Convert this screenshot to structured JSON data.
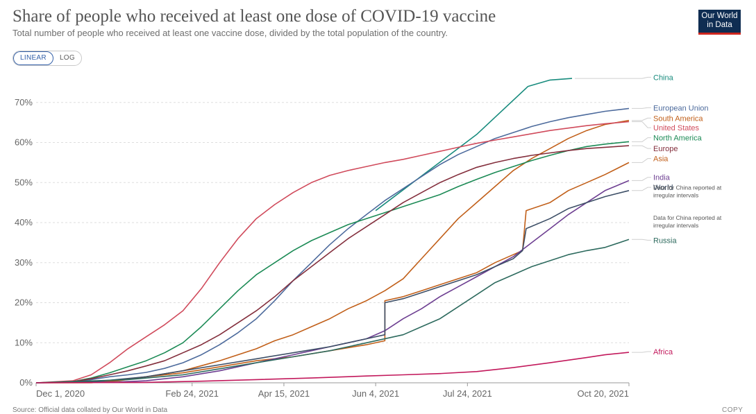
{
  "header": {
    "title": "Share of people who received at least one dose of COVID-19 vaccine",
    "subtitle": "Total number of people who received at least one vaccine dose, divided by the total population of the country.",
    "logo_line1": "Our World",
    "logo_line2": "in Data"
  },
  "controls": {
    "linear_label": "LINEAR",
    "log_label": "LOG"
  },
  "footer": {
    "source": "Source: Official data collated by Our World in Data",
    "copy_label": "COPY"
  },
  "chart_data": {
    "type": "line",
    "x_ticks": [
      "Dec 1, 2020",
      "Feb 24, 2021",
      "Apr 15, 2021",
      "Jun 4, 2021",
      "Jul 24, 2021",
      "Oct 20, 2021"
    ],
    "x_tick_days": [
      0,
      85,
      135,
      185,
      235,
      323
    ],
    "y_ticks": [
      "0%",
      "10%",
      "20%",
      "30%",
      "40%",
      "50%",
      "60%",
      "70%"
    ],
    "ylim": [
      0,
      80
    ],
    "grid": true,
    "legend_placement": "right",
    "notes": [
      "Data for China reported at irregular intervals",
      "Data for China reported at irregular intervals"
    ],
    "series": [
      {
        "name": "China",
        "color": "#178b7d",
        "label_y": 76.3,
        "points": [
          [
            185,
            43
          ],
          [
            240,
            62
          ],
          [
            268,
            74
          ],
          [
            280,
            75.6
          ],
          [
            292,
            76
          ]
        ]
      },
      {
        "name": "European Union",
        "color": "#4c6a9c",
        "label_y": 68.7,
        "points": [
          [
            0,
            0
          ],
          [
            10,
            0.1
          ],
          [
            20,
            0.2
          ],
          [
            30,
            0.8
          ],
          [
            40,
            1.5
          ],
          [
            50,
            2
          ],
          [
            60,
            2.6
          ],
          [
            70,
            3.6
          ],
          [
            80,
            5
          ],
          [
            90,
            7
          ],
          [
            100,
            9.5
          ],
          [
            110,
            12.5
          ],
          [
            120,
            16
          ],
          [
            130,
            20.5
          ],
          [
            140,
            25.5
          ],
          [
            150,
            30
          ],
          [
            160,
            34.5
          ],
          [
            170,
            38.5
          ],
          [
            180,
            42
          ],
          [
            190,
            45.5
          ],
          [
            200,
            48.5
          ],
          [
            210,
            51.5
          ],
          [
            220,
            54.5
          ],
          [
            230,
            57
          ],
          [
            240,
            59
          ],
          [
            250,
            61
          ],
          [
            260,
            62.5
          ],
          [
            270,
            64
          ],
          [
            280,
            65.2
          ],
          [
            290,
            66.2
          ],
          [
            300,
            67
          ],
          [
            310,
            67.8
          ],
          [
            323,
            68.5
          ]
        ]
      },
      {
        "name": "South America",
        "color": "#c15f19",
        "label_y": 66.1,
        "points": [
          [
            0,
            0
          ],
          [
            30,
            0
          ],
          [
            45,
            0.5
          ],
          [
            60,
            1.5
          ],
          [
            80,
            3
          ],
          [
            100,
            5.5
          ],
          [
            120,
            8.5
          ],
          [
            130,
            10.5
          ],
          [
            140,
            12
          ],
          [
            150,
            14
          ],
          [
            160,
            16
          ],
          [
            170,
            18.5
          ],
          [
            180,
            20.5
          ],
          [
            190,
            23
          ],
          [
            200,
            26
          ],
          [
            210,
            31
          ],
          [
            220,
            36
          ],
          [
            230,
            41
          ],
          [
            240,
            45
          ],
          [
            250,
            49
          ],
          [
            260,
            53
          ],
          [
            270,
            56
          ],
          [
            280,
            58.5
          ],
          [
            290,
            61
          ],
          [
            300,
            63
          ],
          [
            310,
            64.5
          ],
          [
            323,
            65.5
          ]
        ]
      },
      {
        "name": "United States",
        "color": "#d04a5b",
        "label_y": 63.7,
        "points": [
          [
            0,
            0
          ],
          [
            20,
            0.5
          ],
          [
            30,
            2
          ],
          [
            40,
            5
          ],
          [
            50,
            8.5
          ],
          [
            60,
            11.5
          ],
          [
            70,
            14.5
          ],
          [
            80,
            18
          ],
          [
            90,
            23.5
          ],
          [
            100,
            30
          ],
          [
            110,
            36
          ],
          [
            120,
            41
          ],
          [
            130,
            44.5
          ],
          [
            140,
            47.5
          ],
          [
            150,
            50
          ],
          [
            160,
            51.8
          ],
          [
            170,
            53
          ],
          [
            180,
            54
          ],
          [
            190,
            55
          ],
          [
            200,
            55.8
          ],
          [
            210,
            56.8
          ],
          [
            220,
            57.8
          ],
          [
            230,
            58.8
          ],
          [
            240,
            59.8
          ],
          [
            250,
            60.6
          ],
          [
            260,
            61.4
          ],
          [
            270,
            62.2
          ],
          [
            280,
            63
          ],
          [
            290,
            63.6
          ],
          [
            300,
            64.2
          ],
          [
            310,
            64.7
          ],
          [
            323,
            65.2
          ]
        ]
      },
      {
        "name": "North America",
        "color": "#1b8a55",
        "label_y": 61.2,
        "points": [
          [
            0,
            0
          ],
          [
            20,
            0.3
          ],
          [
            30,
            1.2
          ],
          [
            40,
            2.5
          ],
          [
            50,
            4
          ],
          [
            60,
            5.5
          ],
          [
            70,
            7.5
          ],
          [
            80,
            10
          ],
          [
            90,
            14
          ],
          [
            100,
            18.5
          ],
          [
            110,
            23
          ],
          [
            120,
            27
          ],
          [
            130,
            30
          ],
          [
            140,
            33
          ],
          [
            150,
            35.5
          ],
          [
            160,
            37.5
          ],
          [
            170,
            39.5
          ],
          [
            180,
            41
          ],
          [
            190,
            42.5
          ],
          [
            200,
            44
          ],
          [
            210,
            45.5
          ],
          [
            220,
            47
          ],
          [
            230,
            49
          ],
          [
            240,
            50.8
          ],
          [
            250,
            52.5
          ],
          [
            260,
            54
          ],
          [
            270,
            55.5
          ],
          [
            280,
            56.8
          ],
          [
            290,
            58
          ],
          [
            300,
            59
          ],
          [
            310,
            59.6
          ],
          [
            323,
            60.2
          ]
        ]
      },
      {
        "name": "Europe",
        "color": "#832e3c",
        "label_y": 58.5,
        "points": [
          [
            0,
            0
          ],
          [
            10,
            0.1
          ],
          [
            20,
            0.3
          ],
          [
            30,
            1
          ],
          [
            40,
            2
          ],
          [
            50,
            3
          ],
          [
            60,
            4.2
          ],
          [
            70,
            5.5
          ],
          [
            80,
            7.5
          ],
          [
            90,
            9.5
          ],
          [
            100,
            12
          ],
          [
            110,
            15
          ],
          [
            120,
            18
          ],
          [
            130,
            21.5
          ],
          [
            140,
            25.5
          ],
          [
            150,
            29
          ],
          [
            160,
            32.5
          ],
          [
            170,
            36
          ],
          [
            180,
            39
          ],
          [
            190,
            42
          ],
          [
            200,
            45
          ],
          [
            210,
            47.5
          ],
          [
            220,
            50
          ],
          [
            230,
            52
          ],
          [
            240,
            53.8
          ],
          [
            250,
            55
          ],
          [
            260,
            56
          ],
          [
            270,
            56.8
          ],
          [
            280,
            57.4
          ],
          [
            290,
            58
          ],
          [
            300,
            58.5
          ],
          [
            310,
            58.8
          ],
          [
            323,
            59.2
          ]
        ]
      },
      {
        "name": "Asia",
        "color": "#c15f19",
        "label_y": 56,
        "points": [
          [
            0,
            0
          ],
          [
            40,
            0.5
          ],
          [
            80,
            2.5
          ],
          [
            100,
            4
          ],
          [
            120,
            5.5
          ],
          [
            140,
            6.5
          ],
          [
            160,
            8
          ],
          [
            180,
            9.5
          ],
          [
            190,
            10.5
          ],
          [
            190,
            20.5
          ],
          [
            200,
            21.5
          ],
          [
            210,
            23
          ],
          [
            220,
            24.5
          ],
          [
            230,
            26
          ],
          [
            240,
            27.5
          ],
          [
            250,
            30
          ],
          [
            260,
            32
          ],
          [
            265,
            33
          ],
          [
            267,
            43
          ],
          [
            280,
            45
          ],
          [
            290,
            48
          ],
          [
            300,
            50
          ],
          [
            310,
            52
          ],
          [
            323,
            55
          ]
        ]
      },
      {
        "name": "India",
        "color": "#6d3e91",
        "label_y": 51.3,
        "points": [
          [
            0,
            0
          ],
          [
            45,
            0.2
          ],
          [
            60,
            0.5
          ],
          [
            80,
            1.5
          ],
          [
            100,
            3
          ],
          [
            120,
            5
          ],
          [
            140,
            7
          ],
          [
            160,
            9
          ],
          [
            170,
            10
          ],
          [
            180,
            11
          ],
          [
            190,
            13
          ],
          [
            200,
            16
          ],
          [
            210,
            18.5
          ],
          [
            220,
            21.5
          ],
          [
            230,
            24
          ],
          [
            240,
            26.5
          ],
          [
            250,
            29
          ],
          [
            260,
            31.5
          ],
          [
            270,
            35
          ],
          [
            280,
            38.5
          ],
          [
            290,
            42
          ],
          [
            300,
            45
          ],
          [
            310,
            48
          ],
          [
            323,
            50.5
          ]
        ]
      },
      {
        "name": "World",
        "color": "#3c4e66",
        "label_y": 48.8,
        "points": [
          [
            0,
            0
          ],
          [
            30,
            0.2
          ],
          [
            60,
            1.5
          ],
          [
            80,
            3
          ],
          [
            100,
            4.5
          ],
          [
            120,
            6
          ],
          [
            140,
            7.5
          ],
          [
            160,
            9
          ],
          [
            180,
            11
          ],
          [
            190,
            12
          ],
          [
            190,
            20
          ],
          [
            200,
            21
          ],
          [
            210,
            22.5
          ],
          [
            220,
            24
          ],
          [
            230,
            25.5
          ],
          [
            240,
            27
          ],
          [
            250,
            29
          ],
          [
            260,
            31
          ],
          [
            265,
            33
          ],
          [
            267,
            38.5
          ],
          [
            280,
            41
          ],
          [
            290,
            43.5
          ],
          [
            300,
            45
          ],
          [
            310,
            46.5
          ],
          [
            323,
            48
          ]
        ]
      },
      {
        "name": "Russia",
        "color": "#2d6a5e",
        "label_y": 35.6,
        "points": [
          [
            0,
            0
          ],
          [
            50,
            0.8
          ],
          [
            80,
            2
          ],
          [
            100,
            3.5
          ],
          [
            120,
            5
          ],
          [
            140,
            6.5
          ],
          [
            160,
            8
          ],
          [
            180,
            10
          ],
          [
            200,
            12
          ],
          [
            210,
            14
          ],
          [
            220,
            16
          ],
          [
            230,
            19
          ],
          [
            240,
            22
          ],
          [
            250,
            25
          ],
          [
            260,
            27
          ],
          [
            270,
            29
          ],
          [
            280,
            30.5
          ],
          [
            290,
            32
          ],
          [
            300,
            33
          ],
          [
            310,
            33.8
          ],
          [
            323,
            35.8
          ]
        ]
      },
      {
        "name": "Africa",
        "color": "#c2185b",
        "label_y": 7.8,
        "points": [
          [
            0,
            0
          ],
          [
            60,
            0.1
          ],
          [
            90,
            0.4
          ],
          [
            120,
            0.8
          ],
          [
            150,
            1.2
          ],
          [
            180,
            1.7
          ],
          [
            200,
            2
          ],
          [
            220,
            2.3
          ],
          [
            240,
            2.8
          ],
          [
            260,
            3.8
          ],
          [
            280,
            5
          ],
          [
            300,
            6.3
          ],
          [
            310,
            7
          ],
          [
            323,
            7.6
          ]
        ]
      }
    ]
  }
}
